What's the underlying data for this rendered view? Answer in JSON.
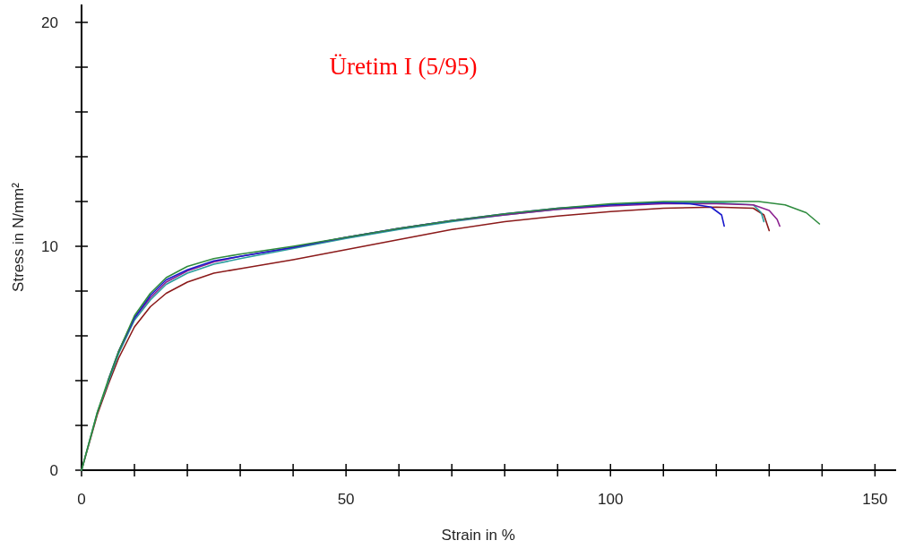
{
  "chart_data": {
    "type": "line",
    "title": "Üretim I (5/95)",
    "xlabel": "Strain in %",
    "ylabel": "Stress in N/mm²",
    "xlim": [
      0,
      154
    ],
    "ylim": [
      0,
      20.8
    ],
    "xticks": [
      0,
      {
        "value": 10,
        "label": null
      },
      {
        "value": 20,
        "label": null
      },
      {
        "value": 30,
        "label": null
      },
      {
        "value": 40,
        "label": null
      },
      50,
      {
        "value": 60,
        "label": null
      },
      {
        "value": 70,
        "label": null
      },
      {
        "value": 80,
        "label": null
      },
      {
        "value": 90,
        "label": null
      },
      100,
      {
        "value": 110,
        "label": null
      },
      {
        "value": 120,
        "label": null
      },
      {
        "value": 130,
        "label": null
      },
      {
        "value": 140,
        "label": null
      },
      150
    ],
    "yticks": [
      0,
      {
        "value": 2,
        "label": null
      },
      {
        "value": 4,
        "label": null
      },
      {
        "value": 6,
        "label": null
      },
      {
        "value": 8,
        "label": null
      },
      10,
      {
        "value": 12,
        "label": null
      },
      {
        "value": 14,
        "label": null
      },
      {
        "value": 16,
        "label": null
      },
      {
        "value": 18,
        "label": null
      },
      20
    ],
    "grid": false,
    "line_style": "solid",
    "marker": "none",
    "series": [
      {
        "color": "#8b1a1a",
        "x": [
          0,
          3,
          5,
          7,
          10,
          13,
          16,
          20,
          25,
          30,
          40,
          50,
          60,
          70,
          80,
          90,
          100,
          110,
          120,
          127,
          129,
          130
        ],
        "values": [
          0,
          2.5,
          3.8,
          5.0,
          6.4,
          7.3,
          7.9,
          8.4,
          8.8,
          9.0,
          9.4,
          9.85,
          10.3,
          10.75,
          11.1,
          11.35,
          11.55,
          11.7,
          11.75,
          11.7,
          11.4,
          10.7
        ]
      },
      {
        "color": "#2a9d9d",
        "x": [
          0,
          3,
          5,
          7,
          10,
          13,
          16,
          20,
          25,
          30,
          40,
          50,
          60,
          70,
          80,
          90,
          100,
          110,
          120,
          127,
          128.5,
          129
        ],
        "values": [
          0,
          2.6,
          3.9,
          5.2,
          6.7,
          7.6,
          8.3,
          8.8,
          9.2,
          9.45,
          9.9,
          10.35,
          10.75,
          11.1,
          11.4,
          11.65,
          11.85,
          11.95,
          11.95,
          11.85,
          11.5,
          11.1
        ]
      },
      {
        "color": "#8b2090",
        "x": [
          7,
          10,
          13,
          16,
          20,
          25,
          30,
          40,
          50,
          60,
          70,
          80,
          90,
          100,
          110,
          120,
          127,
          130,
          131.5,
          132
        ],
        "values": [
          5.3,
          6.8,
          7.7,
          8.4,
          8.9,
          9.3,
          9.55,
          9.95,
          10.4,
          10.8,
          11.15,
          11.4,
          11.65,
          11.8,
          11.9,
          11.9,
          11.85,
          11.6,
          11.2,
          10.9
        ]
      },
      {
        "color": "#1a1acc",
        "x": [
          5,
          7,
          10,
          13,
          16,
          20,
          25,
          30,
          40,
          50,
          60,
          70,
          80,
          90,
          100,
          110,
          115,
          119,
          121,
          121.5
        ],
        "values": [
          4.0,
          5.3,
          6.8,
          7.8,
          8.5,
          8.95,
          9.35,
          9.55,
          9.95,
          10.4,
          10.8,
          11.15,
          11.45,
          11.7,
          11.85,
          11.95,
          11.9,
          11.75,
          11.4,
          10.9
        ]
      },
      {
        "color": "#2e8b3e",
        "x": [
          0,
          3,
          5,
          7,
          10,
          13,
          16,
          20,
          25,
          30,
          40,
          50,
          60,
          70,
          80,
          90,
          100,
          110,
          120,
          128,
          133,
          137,
          139.5
        ],
        "values": [
          0,
          2.6,
          4.0,
          5.3,
          6.9,
          7.9,
          8.6,
          9.1,
          9.45,
          9.65,
          10.0,
          10.4,
          10.8,
          11.15,
          11.45,
          11.7,
          11.9,
          12.0,
          12.0,
          12.0,
          11.85,
          11.5,
          11.0
        ]
      }
    ]
  }
}
